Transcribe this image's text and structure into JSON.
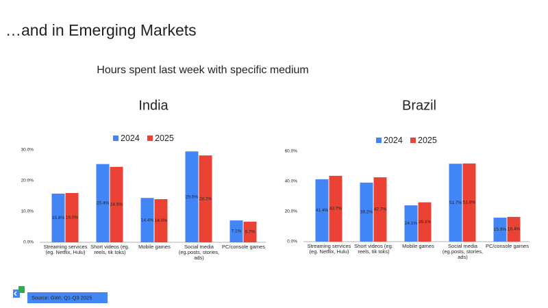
{
  "title": "…and in Emerging Markets",
  "subtitle": "Hours spent last week with specific medium",
  "source": "Source: GWI, Q1-Q3 2025",
  "chart_data": [
    {
      "type": "bar",
      "title": "India",
      "categories": [
        "Streaming services (eg. Netflix, Hulu)",
        "Short videos (eg. reels, tik toks)",
        "Mobile games",
        "Social media (eg.posts, stories, ads)",
        "PC/console games"
      ],
      "series": [
        {
          "name": "2024",
          "color": "#4285f4",
          "values": [
            15.8,
            25.4,
            14.4,
            29.5,
            7.1
          ],
          "value_labels": [
            "15.8%",
            "25.4%",
            "14.4%",
            "29.5%",
            "7.1%"
          ]
        },
        {
          "name": "2025",
          "color": "#ea4335",
          "values": [
            16.0,
            24.5,
            14.0,
            28.2,
            6.7
          ],
          "value_labels": [
            "16.0%",
            "24.5%",
            "14.0%",
            "28.2%",
            "6.7%"
          ]
        }
      ],
      "ylim": [
        0,
        30
      ],
      "yticks": [
        {
          "value": 0,
          "label": "0.0%"
        },
        {
          "value": 10,
          "label": "10.0%"
        },
        {
          "value": 20,
          "label": "20.0%"
        },
        {
          "value": 30,
          "label": "30.0%"
        }
      ],
      "grid": false,
      "legend": "top"
    },
    {
      "type": "bar",
      "title": "Brazil",
      "categories": [
        "Streaming services (eg. Netflix, Hulu)",
        "Short videos (eg. reels, tik toks)",
        "Mobile games",
        "Social media (eg.posts, stories, ads)",
        "PC/console games"
      ],
      "series": [
        {
          "name": "2024",
          "color": "#4285f4",
          "values": [
            41.4,
            39.2,
            24.1,
            51.7,
            15.9
          ],
          "value_labels": [
            "41.4%",
            "39.2%",
            "24.1%",
            "51.7%",
            "15.9%"
          ]
        },
        {
          "name": "2025",
          "color": "#ea4335",
          "values": [
            43.7,
            42.7,
            26.1,
            51.9,
            16.4
          ],
          "value_labels": [
            "43.7%",
            "42.7%",
            "26.1%",
            "51.9%",
            "16.4%"
          ]
        }
      ],
      "ylim": [
        0,
        60
      ],
      "yticks": [
        {
          "value": 0,
          "label": "0.0%"
        },
        {
          "value": 20,
          "label": "20.0%"
        },
        {
          "value": 40,
          "label": "40.0%"
        },
        {
          "value": 60,
          "label": "60.0%"
        }
      ],
      "grid": false,
      "legend": "top"
    }
  ]
}
